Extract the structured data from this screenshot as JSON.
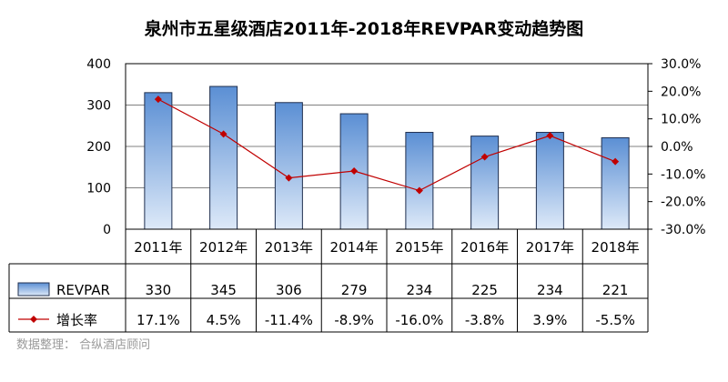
{
  "chart_data": {
    "type": "bar",
    "title": "泉州市五星级酒店2011年-2018年REVPAR变动趋势图",
    "categories": [
      "2011年",
      "2012年",
      "2013年",
      "2014年",
      "2015年",
      "2016年",
      "2017年",
      "2018年"
    ],
    "series": [
      {
        "name": "REVPAR",
        "type": "bar",
        "axis": "left",
        "values": [
          330,
          345,
          306,
          279,
          234,
          225,
          234,
          221
        ],
        "labels": [
          "330",
          "345",
          "306",
          "279",
          "234",
          "225",
          "234",
          "221"
        ]
      },
      {
        "name": "增长率",
        "type": "line",
        "axis": "right",
        "values": [
          17.1,
          4.5,
          -11.4,
          -8.9,
          -16.0,
          -3.8,
          3.9,
          -5.5
        ],
        "labels": [
          "17.1%",
          "4.5%",
          "-11.4%",
          "-8.9%",
          "-16.0%",
          "-3.8%",
          "3.9%",
          "-5.5%"
        ]
      }
    ],
    "y_left": {
      "min": 0,
      "max": 400,
      "ticks": [
        "0",
        "100",
        "200",
        "300",
        "400"
      ]
    },
    "y_right": {
      "min": -30,
      "max": 30,
      "ticks": [
        "-30.0%",
        "-20.0%",
        "-10.0%",
        "0.0%",
        "10.0%",
        "20.0%",
        "30.0%"
      ]
    },
    "grid": true,
    "legend": "data-table",
    "colors": {
      "bar_top": "#5b8fd4",
      "bar_bottom": "#dde9f8",
      "bar_edge": "#1f2f4f",
      "line": "#c00000"
    }
  },
  "source_text": "数据整理：  合纵酒店顾问"
}
